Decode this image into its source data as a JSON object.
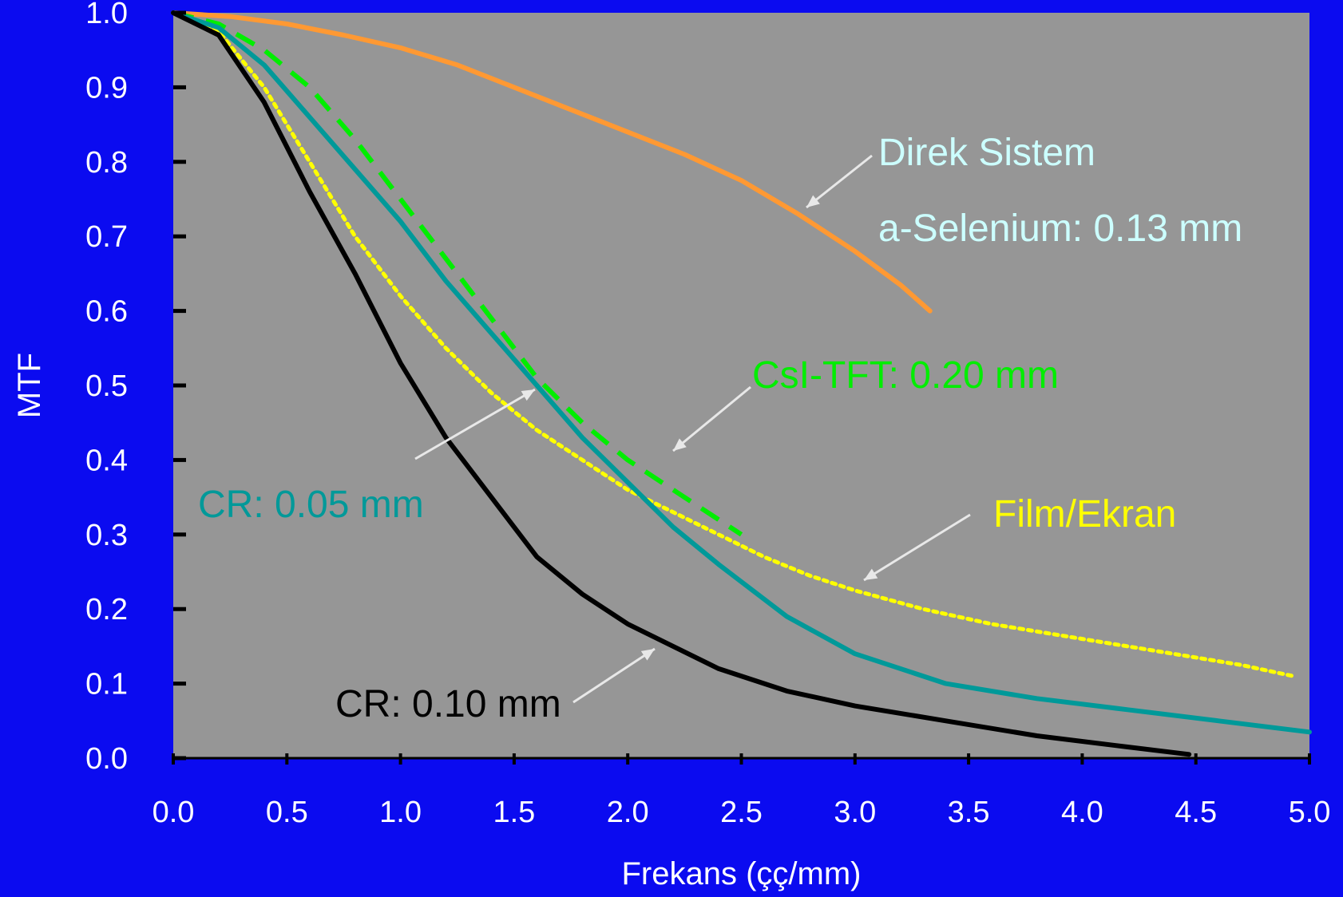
{
  "colors": {
    "background": "#0b0bf0",
    "plot_area": "#969696",
    "tick_text": "#ffffff",
    "axis": "#000000"
  },
  "chart_data": {
    "type": "line",
    "xlabel": "Frekans (çç/mm)",
    "ylabel": "MTF",
    "xlim": [
      0,
      5
    ],
    "ylim": [
      0,
      1
    ],
    "x_ticks": [
      "0.0",
      "0.5",
      "1.0",
      "1.5",
      "2.0",
      "2.5",
      "3.0",
      "3.5",
      "4.0",
      "4.5",
      "5.0"
    ],
    "y_ticks": [
      "0.0",
      "0.1",
      "0.2",
      "0.3",
      "0.4",
      "0.5",
      "0.6",
      "0.7",
      "0.8",
      "0.9",
      "1.0"
    ],
    "grid": false,
    "series": [
      {
        "name": "Direk Sistem",
        "color": "#ff9933",
        "style": "solid",
        "x": [
          0.0,
          0.25,
          0.5,
          0.75,
          1.0,
          1.25,
          1.5,
          1.75,
          2.0,
          2.25,
          2.5,
          2.75,
          3.0,
          3.2,
          3.33
        ],
        "y": [
          1.0,
          0.995,
          0.985,
          0.97,
          0.953,
          0.93,
          0.9,
          0.87,
          0.84,
          0.81,
          0.775,
          0.73,
          0.68,
          0.635,
          0.6
        ]
      },
      {
        "name": "CsI-TFT",
        "color": "#00ee00",
        "style": "dashed",
        "x": [
          0.0,
          0.2,
          0.4,
          0.6,
          0.8,
          1.0,
          1.2,
          1.4,
          1.6,
          1.8,
          2.0,
          2.2,
          2.4,
          2.5
        ],
        "y": [
          1.0,
          0.985,
          0.95,
          0.9,
          0.83,
          0.75,
          0.67,
          0.59,
          0.51,
          0.45,
          0.4,
          0.36,
          0.32,
          0.3
        ]
      },
      {
        "name": "CR: 0.05 mm",
        "color": "#009999",
        "style": "solid",
        "x": [
          0.0,
          0.2,
          0.4,
          0.6,
          0.8,
          1.0,
          1.2,
          1.4,
          1.6,
          1.8,
          2.0,
          2.2,
          2.4,
          2.7,
          3.0,
          3.4,
          3.8,
          4.2,
          4.6,
          5.0
        ],
        "y": [
          1.0,
          0.98,
          0.93,
          0.86,
          0.79,
          0.72,
          0.64,
          0.57,
          0.5,
          0.43,
          0.37,
          0.31,
          0.26,
          0.19,
          0.14,
          0.1,
          0.08,
          0.065,
          0.05,
          0.035
        ]
      },
      {
        "name": "Film/Ekran",
        "color": "#ffff00",
        "style": "dotted",
        "x": [
          0.0,
          0.2,
          0.4,
          0.6,
          0.8,
          1.0,
          1.2,
          1.4,
          1.6,
          1.8,
          2.0,
          2.2,
          2.4,
          2.6,
          2.8,
          3.0,
          3.3,
          3.6,
          4.0,
          4.4,
          4.7,
          4.93
        ],
        "y": [
          1.0,
          0.975,
          0.9,
          0.8,
          0.7,
          0.62,
          0.55,
          0.49,
          0.44,
          0.4,
          0.36,
          0.33,
          0.3,
          0.27,
          0.245,
          0.225,
          0.2,
          0.18,
          0.16,
          0.14,
          0.125,
          0.11
        ]
      },
      {
        "name": "CR: 0.10 mm",
        "color": "#000000",
        "style": "solid",
        "x": [
          0.0,
          0.2,
          0.4,
          0.6,
          0.8,
          1.0,
          1.2,
          1.4,
          1.6,
          1.8,
          2.0,
          2.2,
          2.4,
          2.7,
          3.0,
          3.4,
          3.8,
          4.2,
          4.47
        ],
        "y": [
          1.0,
          0.97,
          0.88,
          0.76,
          0.65,
          0.53,
          0.43,
          0.35,
          0.27,
          0.22,
          0.18,
          0.15,
          0.12,
          0.09,
          0.07,
          0.05,
          0.03,
          0.015,
          0.005
        ]
      }
    ],
    "annotations": [
      {
        "text": "Direk Sistem",
        "color": "#ccffff"
      },
      {
        "text": "a-Selenium: 0.13 mm",
        "color": "#ccffff"
      },
      {
        "text": "CsI-TFT: 0.20 mm",
        "color": "#00ee00"
      },
      {
        "text": "Film/Ekran",
        "color": "#ffff00"
      },
      {
        "text": "CR:  0.05 mm",
        "color": "#009999"
      },
      {
        "text": "CR: 0.10 mm",
        "color": "#000000"
      }
    ]
  }
}
